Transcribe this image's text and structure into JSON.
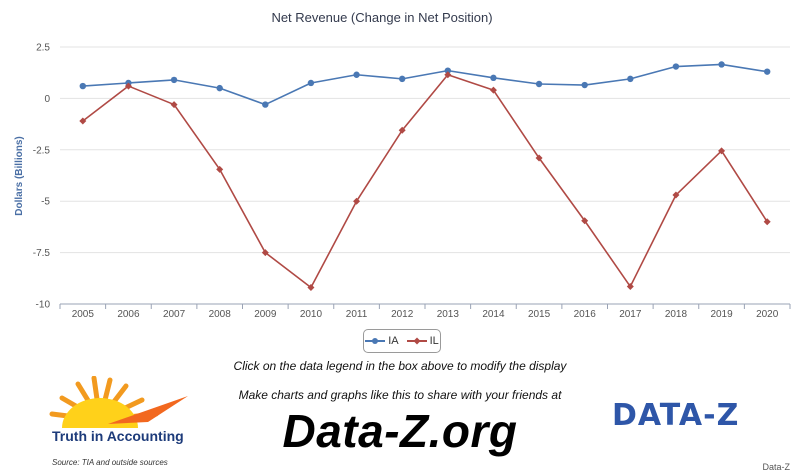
{
  "chart_data": {
    "type": "line",
    "title": "Net Revenue (Change in Net Position)",
    "ylabel": "Dollars (Billions)",
    "xlabel": "",
    "categories": [
      "2005",
      "2006",
      "2007",
      "2008",
      "2009",
      "2010",
      "2011",
      "2012",
      "2013",
      "2014",
      "2015",
      "2016",
      "2017",
      "2018",
      "2019",
      "2020"
    ],
    "ylim": [
      -10,
      2.5
    ],
    "yticks": [
      2.5,
      0,
      -2.5,
      -5,
      -7.5,
      -10
    ],
    "ytick_labels": [
      "2.5",
      "0",
      "-2.5",
      "-5",
      "-7.5",
      "-10"
    ],
    "grid": true,
    "legend_position": "bottom-center",
    "series": [
      {
        "name": "IA",
        "color": "#4a78b4",
        "marker": "circle",
        "values": [
          0.6,
          0.75,
          0.9,
          0.5,
          -0.3,
          0.75,
          1.15,
          0.95,
          1.35,
          1.0,
          0.7,
          0.65,
          0.95,
          1.55,
          1.65,
          1.3
        ]
      },
      {
        "name": "IL",
        "color": "#b04a45",
        "marker": "diamond",
        "values": [
          -1.1,
          0.6,
          -0.3,
          -3.45,
          -7.5,
          -9.2,
          -5.0,
          -1.55,
          1.15,
          0.4,
          -2.9,
          -5.95,
          -9.15,
          -4.7,
          -2.55,
          -6.0
        ]
      }
    ]
  },
  "footer": {
    "legend_hint": "Click on the data legend in the box above to modify the display",
    "share_text": "Make charts and graphs like this to share with your friends at",
    "site": "Data-Z.org",
    "tia_logo_text": "Truth in Accounting",
    "source": "Source: TIA and outside sources",
    "brand_logo": "DATA-Z",
    "brand_small": "Data-Z"
  }
}
